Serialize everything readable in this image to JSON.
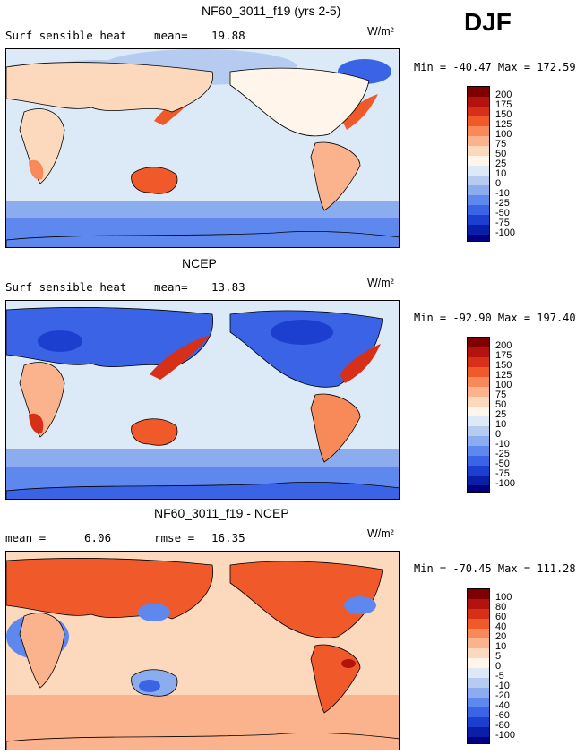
{
  "season": "DJF",
  "panels": [
    {
      "title": "NF60_3011_f19 (yrs 2-5)",
      "left_label": "Surf sensible heat",
      "stat_label": "mean=",
      "stat_value": "19.88",
      "unit": "W/m²",
      "minmax": "Min = -40.47  Max = 172.59",
      "colorbar_labels": [
        "200",
        "175",
        "150",
        "125",
        "100",
        "75",
        "50",
        "25",
        "10",
        "0",
        "-10",
        "-25",
        "-50",
        "-75",
        "-100"
      ]
    },
    {
      "title": "NCEP",
      "left_label": "Surf sensible heat",
      "stat_label": "mean=",
      "stat_value": "13.83",
      "unit": "W/m²",
      "minmax": "Min = -92.90  Max = 197.40",
      "colorbar_labels": [
        "200",
        "175",
        "150",
        "125",
        "100",
        "75",
        "50",
        "25",
        "10",
        "0",
        "-10",
        "-25",
        "-50",
        "-75",
        "-100"
      ]
    },
    {
      "title": "NF60_3011_f19 - NCEP",
      "left_label": "mean =",
      "stat_label": "",
      "stat_value": "6.06",
      "rmse_label": "rmse =",
      "rmse_value": "16.35",
      "unit": "W/m²",
      "minmax": "Min = -70.45  Max = 111.28",
      "colorbar_labels": [
        "100",
        "80",
        "60",
        "40",
        "20",
        "10",
        "5",
        "0",
        "-5",
        "-10",
        "-20",
        "-40",
        "-60",
        "-80",
        "-100"
      ]
    }
  ],
  "colors": {
    "colorbar": [
      "#7f0000",
      "#b3120e",
      "#d73018",
      "#f05a2a",
      "#f88a5a",
      "#fbb38d",
      "#fcd8bd",
      "#fff5ea",
      "#dce9f7",
      "#b5ccf0",
      "#8cacf0",
      "#5f88ee",
      "#3a63e6",
      "#1c3fd0",
      "#0a1fa8",
      "#000080"
    ],
    "ocean": "#dce9f7",
    "land_outline": "#000000"
  }
}
